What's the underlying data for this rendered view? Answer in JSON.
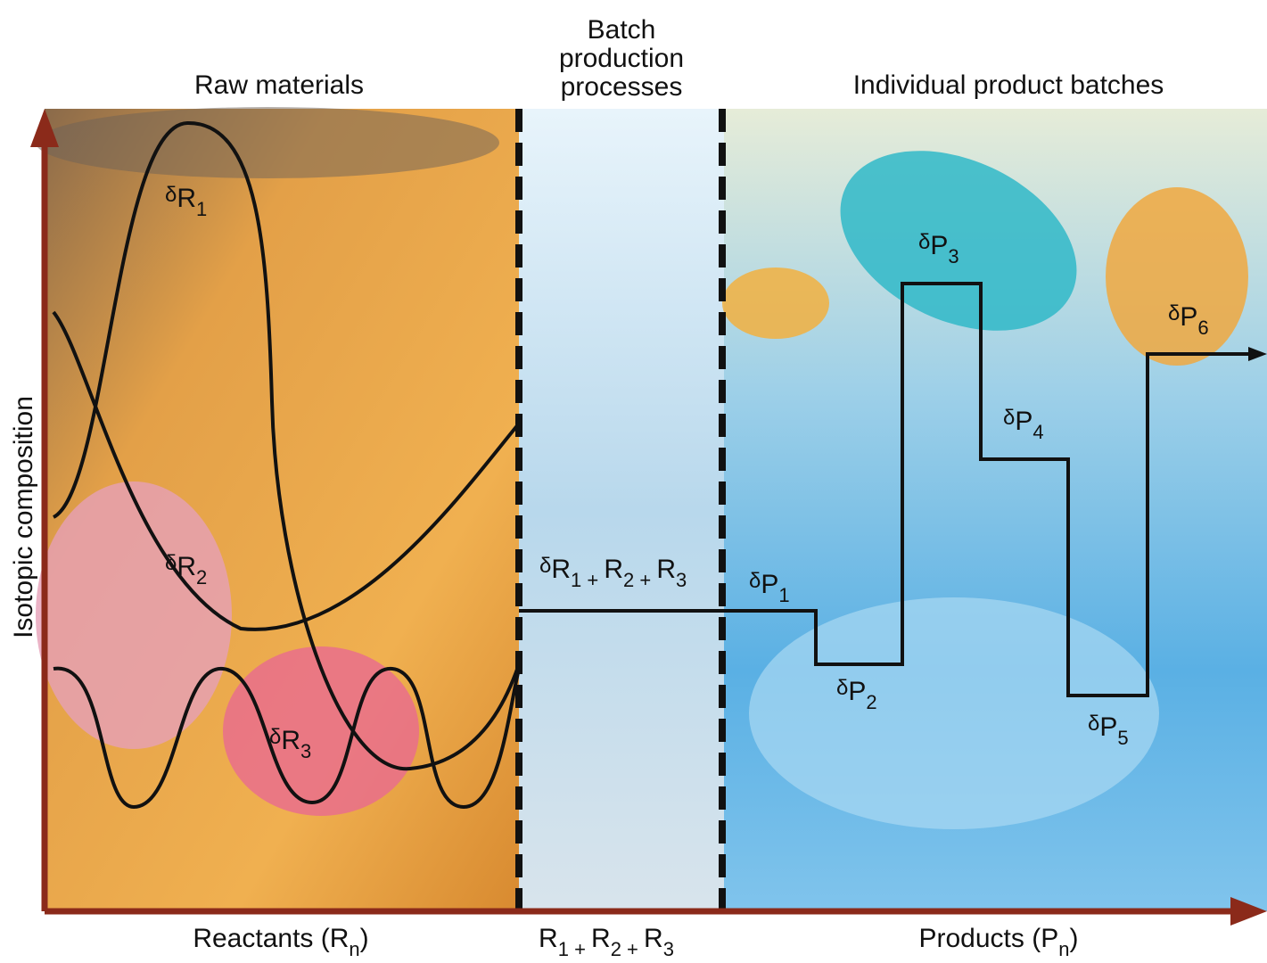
{
  "header": {
    "left": "Raw materials",
    "middle": [
      "Batch",
      "production",
      "processes"
    ],
    "right": "Individual product batches"
  },
  "y_axis_label": "Isotopic composition",
  "x_axis_labels": [
    [
      {
        "t": "Reactants (R"
      },
      {
        "sub": "n"
      },
      {
        "t": ")"
      }
    ],
    [
      {
        "t": "R"
      },
      {
        "sub": "1 + "
      },
      {
        "t": "R"
      },
      {
        "sub": "2 + "
      },
      {
        "t": "R"
      },
      {
        "sub": "3"
      }
    ],
    [
      {
        "t": "Products (P"
      },
      {
        "sub": "n"
      },
      {
        "t": ")"
      }
    ]
  ],
  "curve_labels": [
    [
      {
        "small": "δ"
      },
      {
        "t": "R"
      },
      {
        "sub": "1"
      }
    ],
    [
      {
        "small": "δ"
      },
      {
        "t": "R"
      },
      {
        "sub": "2"
      }
    ],
    [
      {
        "small": "δ"
      },
      {
        "t": "R"
      },
      {
        "sub": "3"
      }
    ],
    [
      {
        "small": "δ"
      },
      {
        "t": "R"
      },
      {
        "sub": "1 + "
      },
      {
        "t": "R"
      },
      {
        "sub": "2 + "
      },
      {
        "t": "R"
      },
      {
        "sub": "3"
      }
    ],
    [
      {
        "small": "δ"
      },
      {
        "t": "P"
      },
      {
        "sub": "1"
      }
    ],
    [
      {
        "small": "δ"
      },
      {
        "t": "P"
      },
      {
        "sub": "2"
      }
    ],
    [
      {
        "small": "δ"
      },
      {
        "t": "P"
      },
      {
        "sub": "3"
      }
    ],
    [
      {
        "small": "δ"
      },
      {
        "t": "P"
      },
      {
        "sub": "4"
      }
    ],
    [
      {
        "small": "δ"
      },
      {
        "t": "P"
      },
      {
        "sub": "5"
      }
    ],
    [
      {
        "small": "δ"
      },
      {
        "t": "P"
      },
      {
        "sub": "6"
      }
    ]
  ]
}
